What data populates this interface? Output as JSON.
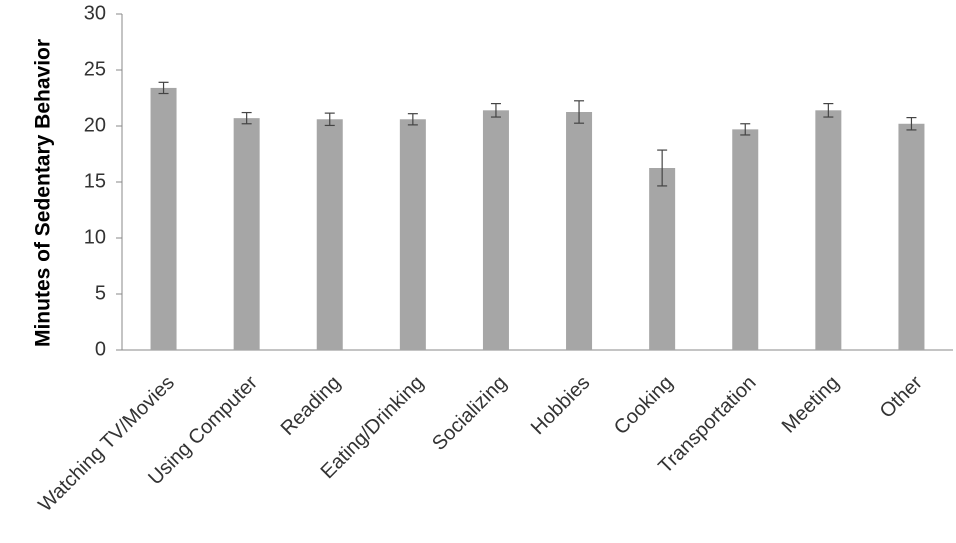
{
  "chart_data": {
    "type": "bar",
    "y_label": "Minutes of Sedentary Behavior",
    "categories": [
      "Watching TV/Movies",
      "Using Computer",
      "Reading",
      "Eating/Drinking",
      "Socializing",
      "Hobbies",
      "Cooking",
      "Transportation",
      "Meeting",
      "Other"
    ],
    "values": [
      23.4,
      20.7,
      20.6,
      20.6,
      21.4,
      21.25,
      16.25,
      19.7,
      21.4,
      20.2
    ],
    "errors": [
      0.5,
      0.5,
      0.55,
      0.5,
      0.6,
      1.0,
      1.6,
      0.5,
      0.6,
      0.55
    ],
    "color": "#a6a6a6",
    "ylim": [
      0,
      30
    ],
    "yticks": [
      0,
      5,
      10,
      15,
      20,
      25,
      30
    ],
    "grid": false
  }
}
